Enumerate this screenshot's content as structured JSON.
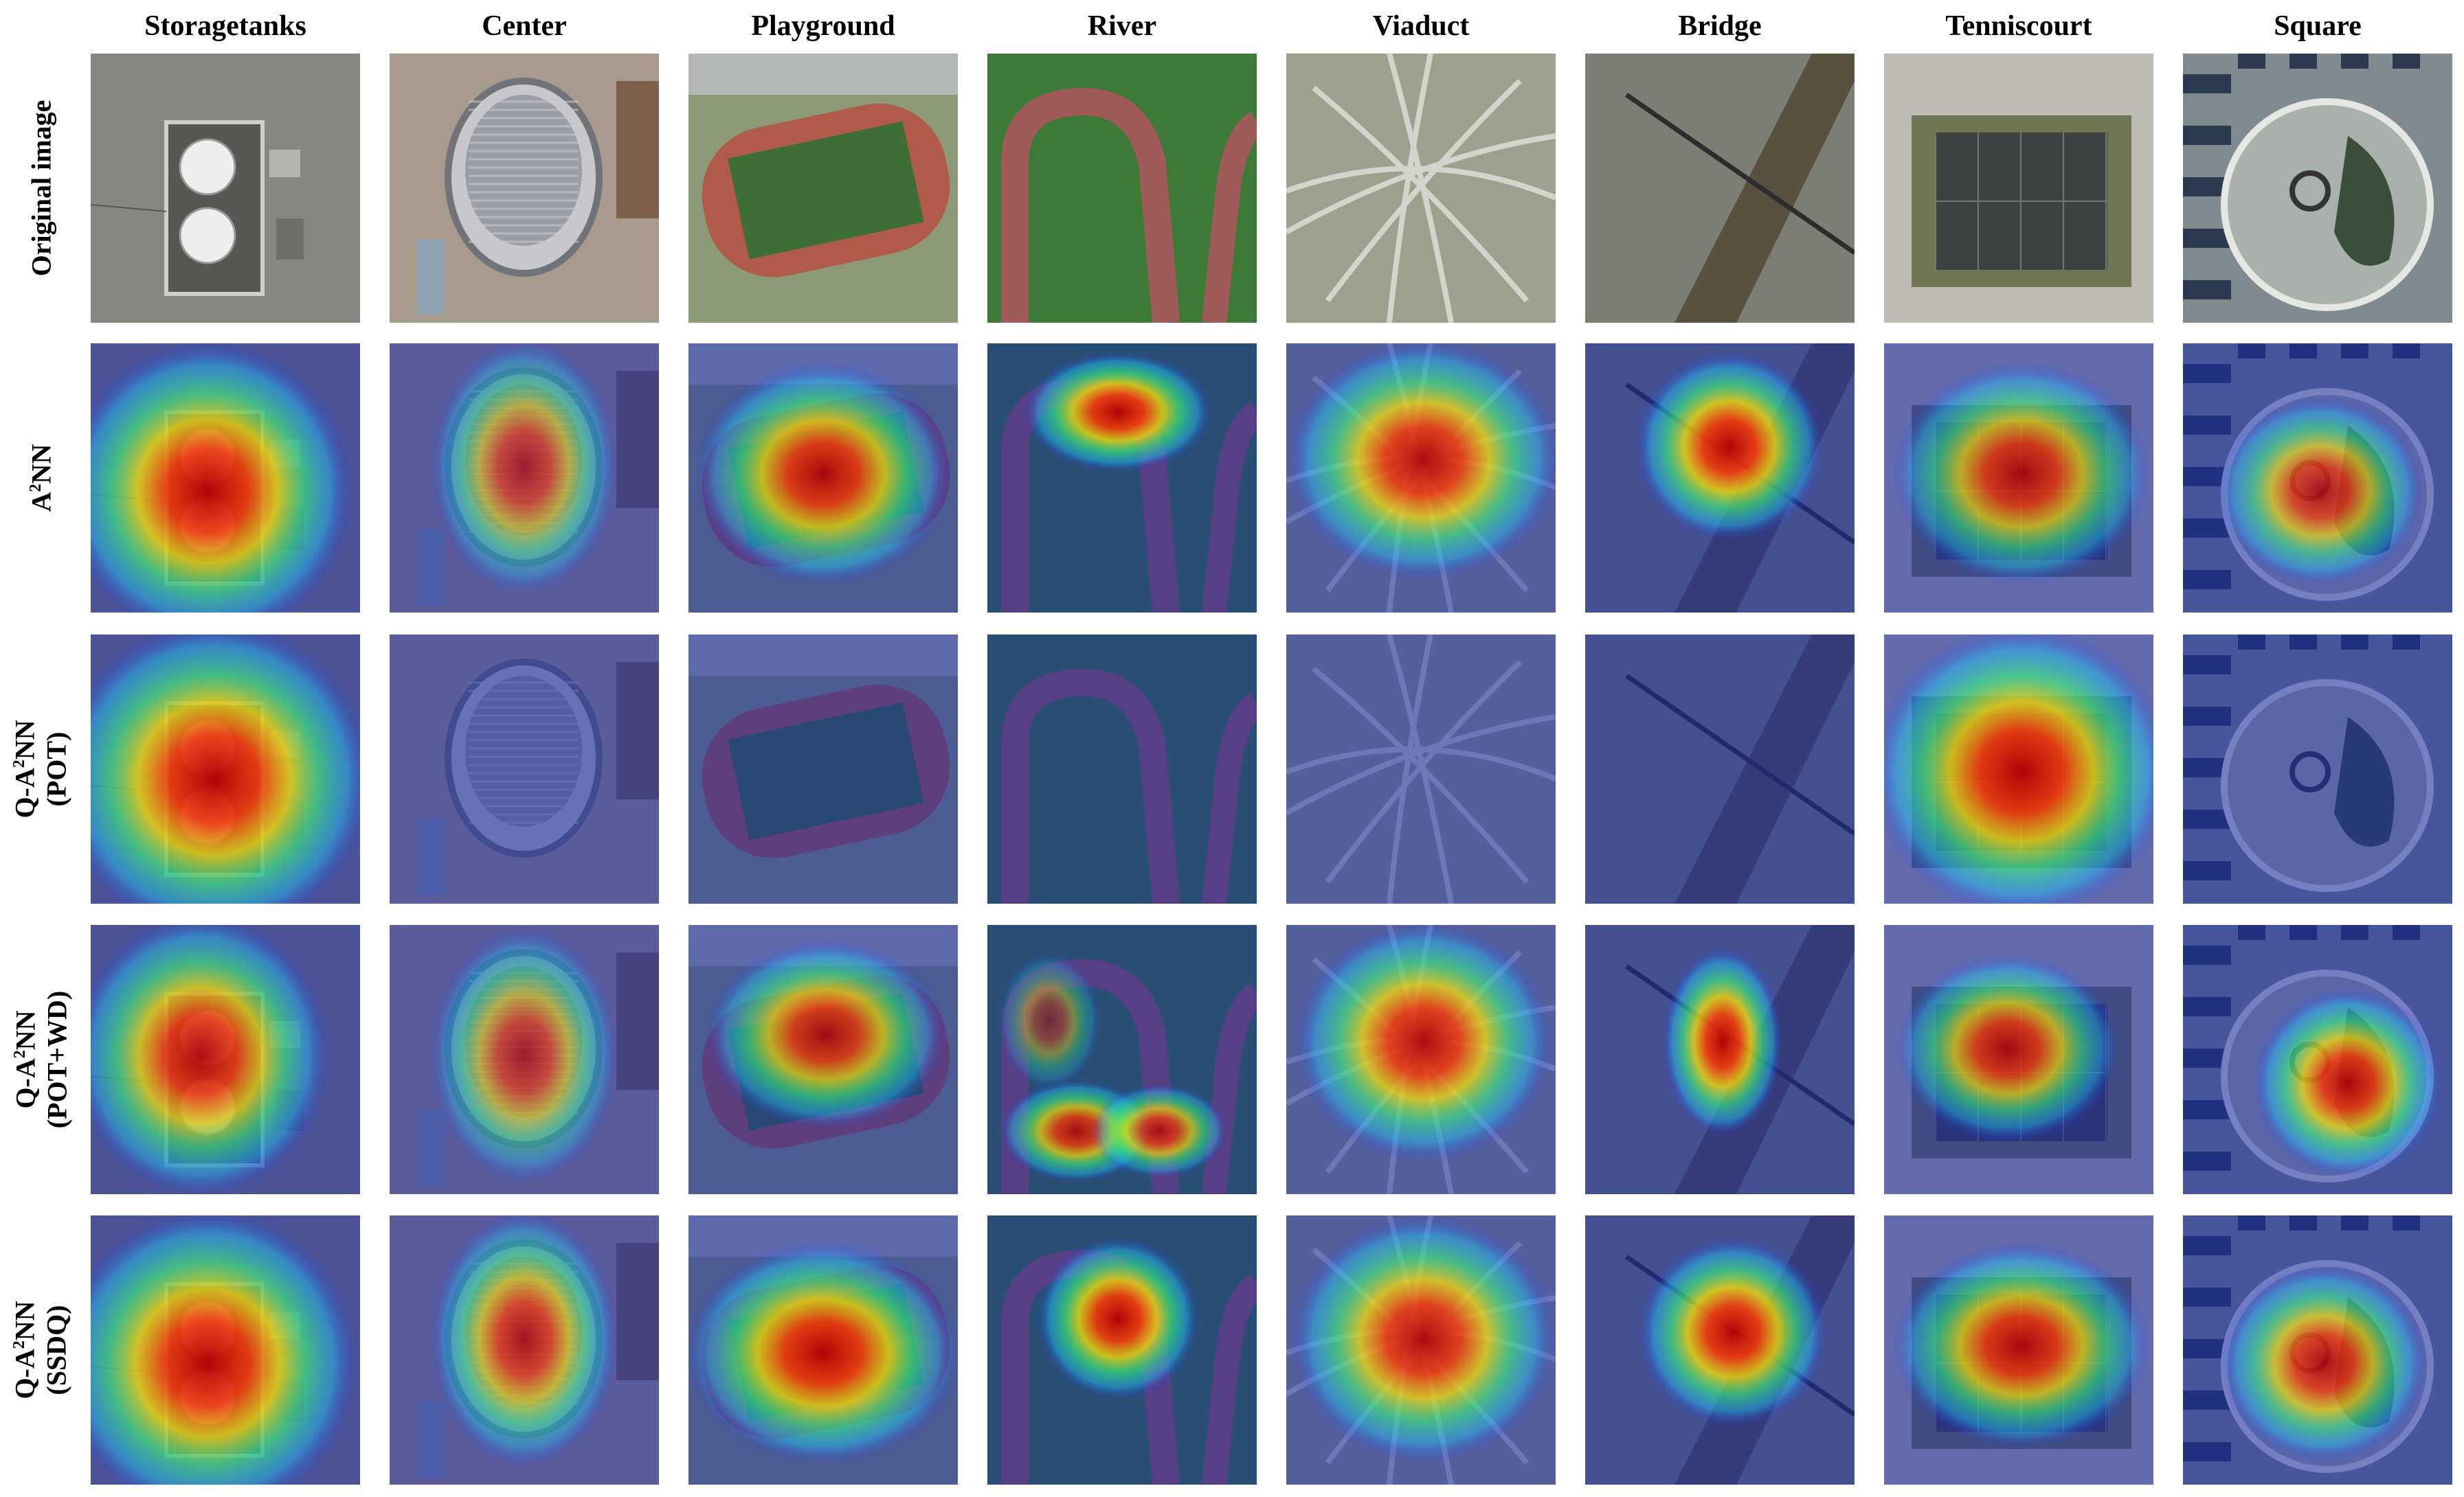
{
  "columns": [
    "Storagetanks",
    "Center",
    "Playground",
    "River",
    "Viaduct",
    "Bridge",
    "Tenniscourt",
    "Square"
  ],
  "rows": [
    {
      "label_pre": "",
      "label_main": "Original image",
      "label_sup": "",
      "label_post": "",
      "label_line2": "",
      "kind": "original"
    },
    {
      "label_pre": "A",
      "label_main": "",
      "label_sup": "2",
      "label_post": "NN",
      "label_line2": "",
      "kind": "a2nn"
    },
    {
      "label_pre": "Q-A",
      "label_main": "",
      "label_sup": "2",
      "label_post": "NN",
      "label_line2": "(POT)",
      "kind": "pot"
    },
    {
      "label_pre": "Q-A",
      "label_main": "",
      "label_sup": "2",
      "label_post": "NN",
      "label_line2": "(POT+WD)",
      "kind": "potwd"
    },
    {
      "label_pre": "Q-A",
      "label_main": "",
      "label_sup": "2",
      "label_post": "NN",
      "label_line2": "(SSDQ)",
      "kind": "ssdq"
    }
  ]
}
